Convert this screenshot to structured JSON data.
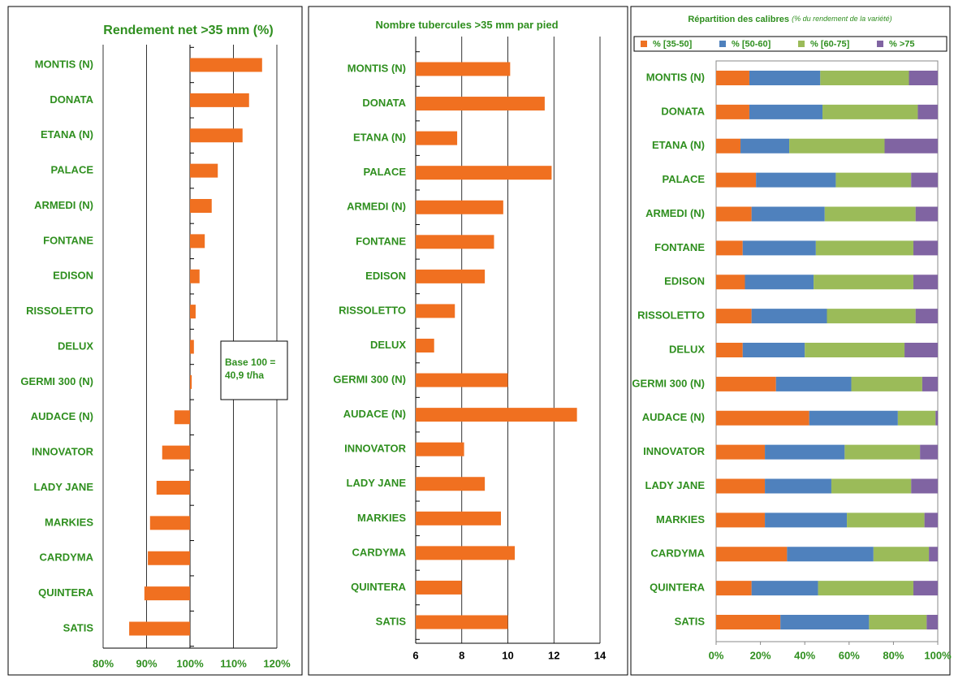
{
  "chart_data": [
    {
      "type": "bar",
      "title": "Rendement net >35 mm (%)",
      "color": "#f07020",
      "categories": [
        "MONTIS (N)",
        "DONATA",
        "ETANA (N)",
        "PALACE",
        "ARMEDI (N)",
        "FONTANE",
        "EDISON",
        "RISSOLETTO",
        "DELUX",
        "GERMI 300 (N)",
        "AUDACE (N)",
        "INNOVATOR",
        "LADY JANE",
        "MARKIES",
        "CARDYMA",
        "QUINTERA",
        "SATIS"
      ],
      "values": [
        116.6,
        113.6,
        112.1,
        106.4,
        105,
        103.4,
        102.2,
        101.3,
        100.9,
        100.4,
        96.4,
        93.6,
        92.3,
        90.8,
        90.3,
        89.5,
        86
      ],
      "xlim": [
        80,
        120
      ],
      "xticks": [
        {
          "value": 80,
          "label": "80%"
        },
        {
          "value": 90,
          "label": "90%"
        },
        {
          "value": 100,
          "label": "100%"
        },
        {
          "value": 110,
          "label": "110%"
        },
        {
          "value": 120,
          "label": "120%"
        }
      ],
      "origin": 100,
      "grid": true,
      "annotation": [
        "Base 100 =",
        "40,9 t/ha"
      ]
    },
    {
      "type": "bar",
      "title": "Nombre tubercules >35 mm par pied",
      "color": "#f07020",
      "categories": [
        "MONTIS (N)",
        "DONATA",
        "ETANA (N)",
        "PALACE",
        "ARMEDI (N)",
        "FONTANE",
        "EDISON",
        "RISSOLETTO",
        "DELUX",
        "GERMI 300 (N)",
        "AUDACE (N)",
        "INNOVATOR",
        "LADY JANE",
        "MARKIES",
        "CARDYMA",
        "QUINTERA",
        "SATIS"
      ],
      "values": [
        10.1,
        11.6,
        7.8,
        11.9,
        9.8,
        9.4,
        9.0,
        7.7,
        6.8,
        10.0,
        13.0,
        8.1,
        9.0,
        9.7,
        10.3,
        8.0,
        10.0
      ],
      "xlim": [
        6,
        14
      ],
      "xticks": [
        6,
        8,
        10,
        12,
        14
      ],
      "origin": 6,
      "grid": true
    },
    {
      "type": "stacked_bar",
      "title": "Répartition des calibres",
      "subtitle": "(% du rendement de la variété)",
      "categories": [
        "MONTIS (N)",
        "DONATA",
        "ETANA (N)",
        "PALACE",
        "ARMEDI (N)",
        "FONTANE",
        "EDISON",
        "RISSOLETTO",
        "DELUX",
        "GERMI 300 (N)",
        "AUDACE (N)",
        "INNOVATOR",
        "LADY JANE",
        "MARKIES",
        "CARDYMA",
        "QUINTERA",
        "SATIS"
      ],
      "series": [
        {
          "name": "% [35-50]",
          "color": "#ee7122",
          "values": [
            15,
            15,
            11,
            18,
            16,
            12,
            13,
            16,
            12,
            27,
            42,
            22,
            22,
            22,
            32,
            16,
            29
          ]
        },
        {
          "name": "% [50-60]",
          "color": "#4f81bd",
          "values": [
            32,
            33,
            22,
            36,
            33,
            33,
            31,
            34,
            28,
            34,
            40,
            36,
            30,
            37,
            39,
            30,
            40
          ]
        },
        {
          "name": "% [60-75]",
          "color": "#9bbb59",
          "values": [
            40,
            43,
            43,
            34,
            41,
            44,
            45,
            40,
            45,
            32,
            17,
            34,
            36,
            35,
            25,
            43,
            26
          ]
        },
        {
          "name": "% >75",
          "color": "#8064a2",
          "values": [
            13,
            9,
            24,
            12,
            10,
            11,
            11,
            10,
            15,
            7,
            1,
            8,
            12,
            6,
            4,
            11,
            5
          ]
        }
      ],
      "xlim": [
        0,
        100
      ],
      "xticks": [
        {
          "value": 0,
          "label": "0%"
        },
        {
          "value": 20,
          "label": "20%"
        },
        {
          "value": 40,
          "label": "40%"
        },
        {
          "value": 60,
          "label": "60%"
        },
        {
          "value": 80,
          "label": "80%"
        },
        {
          "value": 100,
          "label": "100%"
        }
      ],
      "grid": false
    }
  ]
}
